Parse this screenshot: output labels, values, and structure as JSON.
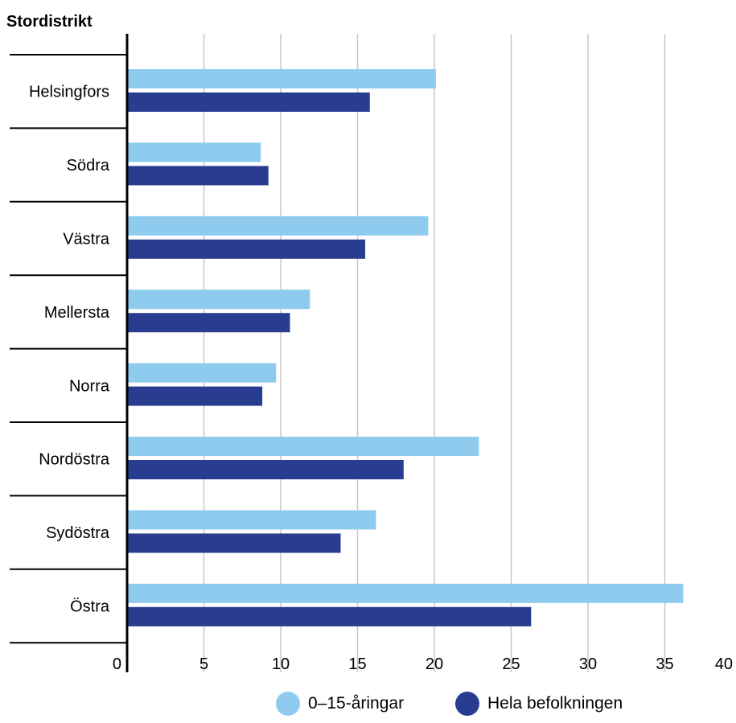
{
  "chart_data": {
    "type": "bar",
    "orientation": "horizontal",
    "y_title": "Stordistrikt",
    "categories": [
      "Helsingfors",
      "Södra",
      "Västra",
      "Mellersta",
      "Norra",
      "Nordöstra",
      "Sydöstra",
      "Östra"
    ],
    "series": [
      {
        "name": "0–15-åringar",
        "color": "#8ecbef",
        "values": [
          20.1,
          8.7,
          19.6,
          11.9,
          9.7,
          22.9,
          16.2,
          36.2
        ]
      },
      {
        "name": "Hela befolkningen",
        "color": "#283d8f",
        "values": [
          15.8,
          9.2,
          15.5,
          10.6,
          8.8,
          18.0,
          13.9,
          26.3
        ]
      }
    ],
    "x_ticks": [
      "0",
      "5",
      "10",
      "15",
      "20",
      "25",
      "30",
      "35",
      "40"
    ],
    "xlim": [
      0,
      40
    ],
    "grid": "vertical",
    "legend_position": "bottom"
  }
}
